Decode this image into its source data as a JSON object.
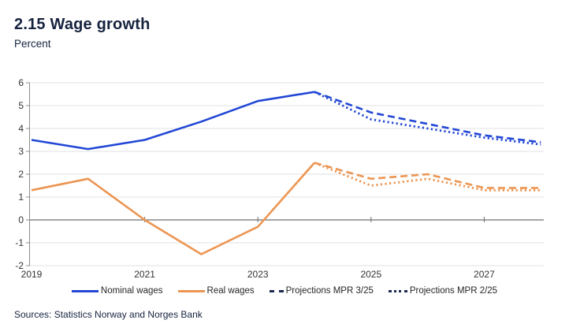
{
  "header": {
    "title": "2.15 Wage growth",
    "subtitle": "Percent"
  },
  "source": {
    "text": "Sources: Statistics Norway and Norges Bank"
  },
  "colors": {
    "blue": "#2247d5",
    "orange": "#ec9552",
    "navy": "#1c2b4d",
    "gridline": "#e2e2e2",
    "zero_line": "#6f6f6f",
    "axis": "#8c8c8c",
    "text_navy": "#16233f",
    "tick_text": "#333333"
  },
  "chart_data": {
    "type": "line",
    "title": "2.15 Wage growth",
    "ylabel": "Percent",
    "xlabel": "",
    "xlim": [
      2019,
      2028
    ],
    "ylim": [
      -2,
      6
    ],
    "grid": true,
    "legend_position": "bottom",
    "x_ticks": [
      2019,
      2021,
      2023,
      2025,
      2027
    ],
    "y_ticks": [
      6,
      5,
      4,
      3,
      2,
      1,
      0,
      -1,
      -2
    ],
    "series": [
      {
        "id": "nominal-wages",
        "name": "Nominal wages",
        "style": "solid",
        "color": "blue",
        "x": [
          2019,
          2020,
          2021,
          2022,
          2023,
          2024
        ],
        "values": [
          3.5,
          3.1,
          3.5,
          4.3,
          5.2,
          5.6
        ]
      },
      {
        "id": "real-wages",
        "name": "Real wages",
        "style": "solid",
        "color": "orange",
        "x": [
          2019,
          2020,
          2021,
          2022,
          2023,
          2024
        ],
        "values": [
          1.3,
          1.8,
          0.0,
          -1.5,
          -0.3,
          2.5
        ]
      },
      {
        "id": "nominal-projection-mpr-2-25",
        "name": "Nominal wages projection MPR 2/25",
        "style": "dotted",
        "color": "blue",
        "x": [
          2024,
          2025,
          2026,
          2027,
          2028
        ],
        "values": [
          5.6,
          4.4,
          4.0,
          3.6,
          3.3
        ]
      },
      {
        "id": "real-projection-mpr-2-25",
        "name": "Real wages projection MPR 2/25",
        "style": "dotted",
        "color": "orange",
        "x": [
          2024,
          2025,
          2026,
          2027,
          2028
        ],
        "values": [
          2.5,
          1.5,
          1.8,
          1.3,
          1.3
        ]
      },
      {
        "id": "nominal-projection-mpr-3-25",
        "name": "Nominal wages projection MPR 3/25",
        "style": "dashed",
        "color": "blue",
        "x": [
          2024,
          2025,
          2026,
          2027,
          2028
        ],
        "values": [
          5.6,
          4.7,
          4.2,
          3.7,
          3.4
        ]
      },
      {
        "id": "real-projection-mpr-3-25",
        "name": "Real wages projection MPR 3/25",
        "style": "dashed",
        "color": "orange",
        "x": [
          2024,
          2025,
          2026,
          2027,
          2028
        ],
        "values": [
          2.5,
          1.8,
          2.0,
          1.4,
          1.4
        ]
      }
    ],
    "legend": [
      {
        "label": "Nominal wages",
        "swatch": "solid",
        "color": "blue"
      },
      {
        "label": "Real wages",
        "swatch": "solid",
        "color": "orange"
      },
      {
        "label": "Projections MPR 3/25",
        "swatch": "dashed",
        "color": "navy"
      },
      {
        "label": "Projections MPR 2/25",
        "swatch": "dotted",
        "color": "navy"
      }
    ]
  }
}
